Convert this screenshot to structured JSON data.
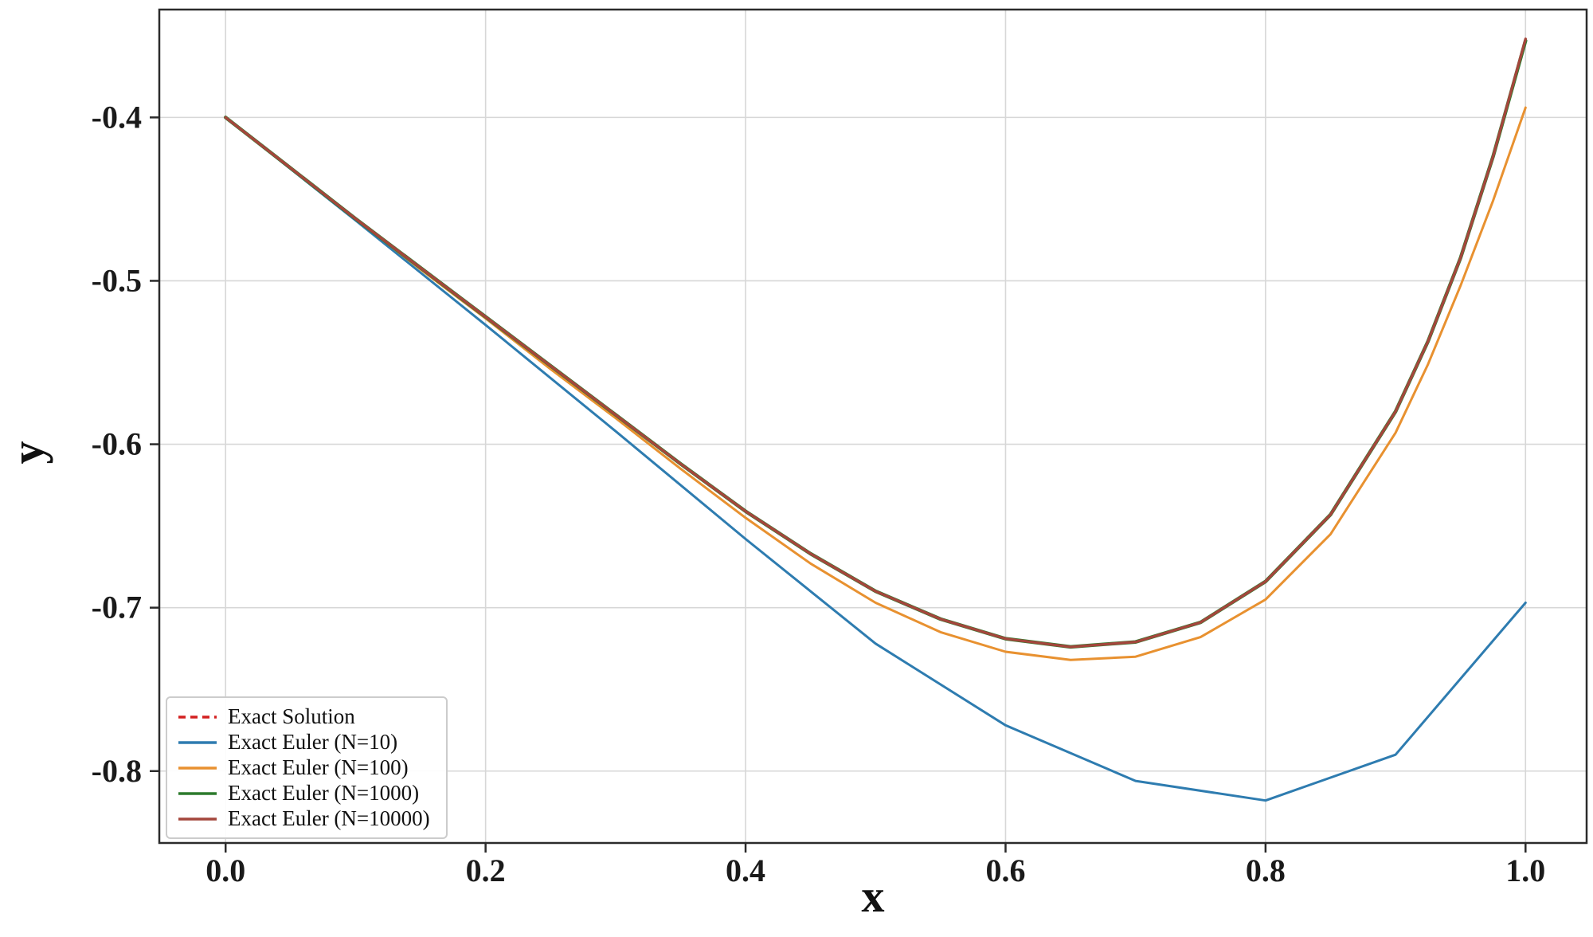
{
  "chart_data": {
    "type": "line",
    "title": "",
    "xlabel": "x",
    "ylabel": "y",
    "xlim": [
      -0.051,
      1.047
    ],
    "ylim": [
      -0.844,
      -0.334
    ],
    "xtick_values": [
      0.0,
      0.2,
      0.4,
      0.6,
      0.8,
      1.0
    ],
    "xtick_labels": [
      "0.0",
      "0.2",
      "0.4",
      "0.6",
      "0.8",
      "1.0"
    ],
    "ytick_values": [
      -0.4,
      -0.5,
      -0.6,
      -0.7,
      -0.8
    ],
    "ytick_labels": [
      "-0.4",
      "-0.5",
      "-0.6",
      "-0.7",
      "-0.8"
    ],
    "grid": true,
    "grid_color": "#d7d7d7",
    "axis_color": "#2b2b2b",
    "legend_position": "lower left",
    "series": [
      {
        "name": "Exact Solution",
        "color": "#d32020",
        "dash": "dashed",
        "width": 3,
        "x": [
          0.0,
          0.05,
          0.1,
          0.15,
          0.2,
          0.25,
          0.3,
          0.35,
          0.4,
          0.45,
          0.5,
          0.55,
          0.6,
          0.65,
          0.7,
          0.75,
          0.8,
          0.85,
          0.9,
          0.925,
          0.95,
          0.975,
          1.0
        ],
        "y": [
          -0.4,
          -0.431,
          -0.462,
          -0.492,
          -0.522,
          -0.552,
          -0.582,
          -0.612,
          -0.641,
          -0.667,
          -0.69,
          -0.707,
          -0.719,
          -0.724,
          -0.721,
          -0.709,
          -0.684,
          -0.643,
          -0.58,
          -0.537,
          -0.486,
          -0.424,
          -0.352
        ]
      },
      {
        "name": "Exact Euler (N=10)",
        "color": "#2e7cb0",
        "dash": "solid",
        "width": 3,
        "x": [
          0.0,
          0.1,
          0.2,
          0.3,
          0.4,
          0.5,
          0.6,
          0.7,
          0.8,
          0.9,
          1.0
        ],
        "y": [
          -0.4,
          -0.463,
          -0.527,
          -0.592,
          -0.658,
          -0.722,
          -0.772,
          -0.806,
          -0.818,
          -0.79,
          -0.697
        ]
      },
      {
        "name": "Exact Euler (N=100)",
        "color": "#e89130",
        "dash": "solid",
        "width": 3,
        "x": [
          0.0,
          0.05,
          0.1,
          0.15,
          0.2,
          0.25,
          0.3,
          0.35,
          0.4,
          0.45,
          0.5,
          0.55,
          0.6,
          0.65,
          0.7,
          0.75,
          0.8,
          0.85,
          0.9,
          0.925,
          0.95,
          0.975,
          1.0
        ],
        "y": [
          -0.4,
          -0.431,
          -0.462,
          -0.493,
          -0.523,
          -0.554,
          -0.584,
          -0.615,
          -0.645,
          -0.673,
          -0.697,
          -0.715,
          -0.727,
          -0.732,
          -0.73,
          -0.718,
          -0.695,
          -0.655,
          -0.593,
          -0.551,
          -0.503,
          -0.451,
          -0.394
        ]
      },
      {
        "name": "Exact Euler (N=1000)",
        "color": "#2c7a2c",
        "dash": "solid",
        "width": 4.5,
        "x": [
          0.0,
          0.05,
          0.1,
          0.15,
          0.2,
          0.25,
          0.3,
          0.35,
          0.4,
          0.45,
          0.5,
          0.55,
          0.6,
          0.65,
          0.7,
          0.75,
          0.8,
          0.85,
          0.9,
          0.925,
          0.95,
          0.975,
          1.0
        ],
        "y": [
          -0.4,
          -0.431,
          -0.462,
          -0.492,
          -0.522,
          -0.552,
          -0.582,
          -0.612,
          -0.641,
          -0.667,
          -0.69,
          -0.707,
          -0.719,
          -0.724,
          -0.721,
          -0.709,
          -0.684,
          -0.643,
          -0.58,
          -0.537,
          -0.486,
          -0.424,
          -0.353
        ]
      },
      {
        "name": "Exact Euler (N=10000)",
        "color": "#a4463c",
        "dash": "solid",
        "width": 3.4,
        "x": [
          0.0,
          0.05,
          0.1,
          0.15,
          0.2,
          0.25,
          0.3,
          0.35,
          0.4,
          0.45,
          0.5,
          0.55,
          0.6,
          0.65,
          0.7,
          0.75,
          0.8,
          0.85,
          0.9,
          0.925,
          0.95,
          0.975,
          1.0
        ],
        "y": [
          -0.4,
          -0.431,
          -0.462,
          -0.492,
          -0.522,
          -0.552,
          -0.582,
          -0.612,
          -0.641,
          -0.667,
          -0.69,
          -0.707,
          -0.719,
          -0.724,
          -0.721,
          -0.709,
          -0.684,
          -0.643,
          -0.58,
          -0.537,
          -0.486,
          -0.424,
          -0.352
        ]
      }
    ]
  }
}
